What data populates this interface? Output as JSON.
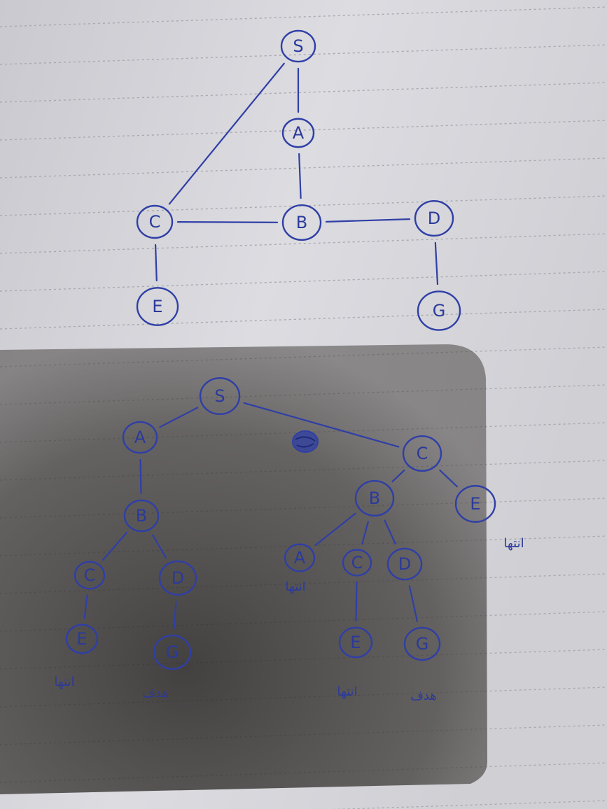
{
  "ink_color": "#2f3fa6",
  "paper_color": "#d6d6db",
  "rule_color": "#a9aab0",
  "shadow_color": "#3a3634",
  "graph": {
    "nodes": [
      {
        "id": "g-s",
        "label": "S"
      },
      {
        "id": "g-a",
        "label": "A"
      },
      {
        "id": "g-b",
        "label": "B"
      },
      {
        "id": "g-c",
        "label": "C"
      },
      {
        "id": "g-d",
        "label": "D"
      },
      {
        "id": "g-e",
        "label": "E"
      },
      {
        "id": "g-g",
        "label": "G"
      }
    ],
    "edges": [
      {
        "from": "g-s",
        "to": "g-a"
      },
      {
        "from": "g-a",
        "to": "g-b"
      },
      {
        "from": "g-s",
        "to": "g-c"
      },
      {
        "from": "g-c",
        "to": "g-b"
      },
      {
        "from": "g-b",
        "to": "g-d"
      },
      {
        "from": "g-c",
        "to": "g-e"
      },
      {
        "from": "g-d",
        "to": "g-g"
      }
    ]
  },
  "tree": {
    "nodes": [
      {
        "id": "t-s",
        "label": "S"
      },
      {
        "id": "t-a",
        "label": "A"
      },
      {
        "id": "t-c",
        "label": "C"
      },
      {
        "id": "t-b1",
        "label": "B"
      },
      {
        "id": "t-c1",
        "label": "C"
      },
      {
        "id": "t-d1",
        "label": "D"
      },
      {
        "id": "t-e1",
        "label": "E"
      },
      {
        "id": "t-g1",
        "label": "G"
      },
      {
        "id": "t-b2",
        "label": "B"
      },
      {
        "id": "t-e3",
        "label": "E"
      },
      {
        "id": "t-a2",
        "label": "A"
      },
      {
        "id": "t-c2",
        "label": "C"
      },
      {
        "id": "t-d2",
        "label": "D"
      },
      {
        "id": "t-e2",
        "label": "E"
      },
      {
        "id": "t-g2",
        "label": "G"
      }
    ],
    "edges": [
      {
        "from": "t-s",
        "to": "t-a"
      },
      {
        "from": "t-s",
        "to": "t-c"
      },
      {
        "from": "t-a",
        "to": "t-b1"
      },
      {
        "from": "t-b1",
        "to": "t-c1"
      },
      {
        "from": "t-b1",
        "to": "t-d1"
      },
      {
        "from": "t-c1",
        "to": "t-e1"
      },
      {
        "from": "t-d1",
        "to": "t-g1"
      },
      {
        "from": "t-c",
        "to": "t-b2"
      },
      {
        "from": "t-c",
        "to": "t-e3"
      },
      {
        "from": "t-b2",
        "to": "t-a2"
      },
      {
        "from": "t-b2",
        "to": "t-c2"
      },
      {
        "from": "t-b2",
        "to": "t-d2"
      },
      {
        "from": "t-c2",
        "to": "t-e2"
      },
      {
        "from": "t-d2",
        "to": "t-g2"
      }
    ],
    "annotations": {
      "dead_end_e1": "انتها",
      "goal_g1": "هدف",
      "dead_end_a2": "انتها",
      "dead_end_e2": "انتها",
      "goal_g2": "هدف",
      "dead_end_e3": "انتها"
    }
  }
}
